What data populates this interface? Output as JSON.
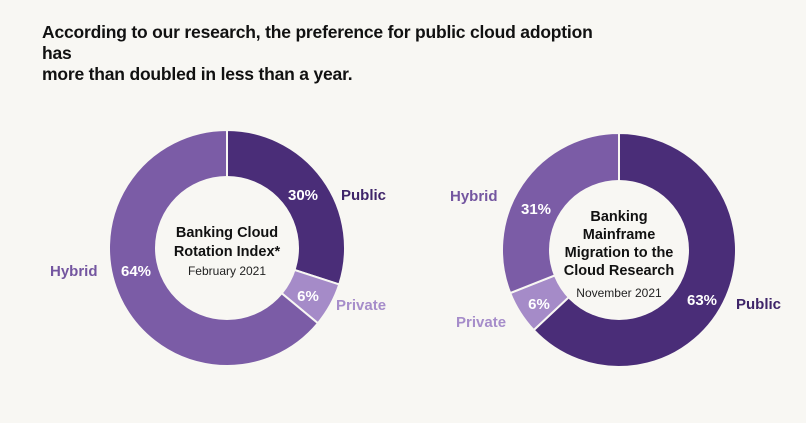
{
  "headline": {
    "line1": "According to our research, the preference for public cloud adoption has",
    "line2": "more than doubled in less than a year."
  },
  "colors": {
    "public": "#4a2d78",
    "hybrid": "#7b5ca6",
    "private": "#a58bc8",
    "hole": "#f8f7f3",
    "label_public": "#3f2569",
    "label_hybrid": "#7456a0",
    "label_private": "#a68dca"
  },
  "chart_data": [
    {
      "type": "pie",
      "style": "donut",
      "center_title": [
        "Banking Cloud",
        "Rotation Index*"
      ],
      "center_subtitle": "February 2021",
      "slices": [
        {
          "name": "Public",
          "value": 30,
          "label": "30%"
        },
        {
          "name": "Private",
          "value": 6,
          "label": "6%"
        },
        {
          "name": "Hybrid",
          "value": 64,
          "label": "64%"
        }
      ],
      "legend": "category labels beside slices"
    },
    {
      "type": "pie",
      "style": "donut",
      "center_title": [
        "Banking",
        "Mainframe",
        "Migration to the",
        "Cloud Research"
      ],
      "center_subtitle": "November 2021",
      "slices": [
        {
          "name": "Public",
          "value": 63,
          "label": "63%"
        },
        {
          "name": "Private",
          "value": 6,
          "label": "6%"
        },
        {
          "name": "Hybrid",
          "value": 31,
          "label": "31%"
        }
      ],
      "legend": "category labels beside slices"
    }
  ]
}
